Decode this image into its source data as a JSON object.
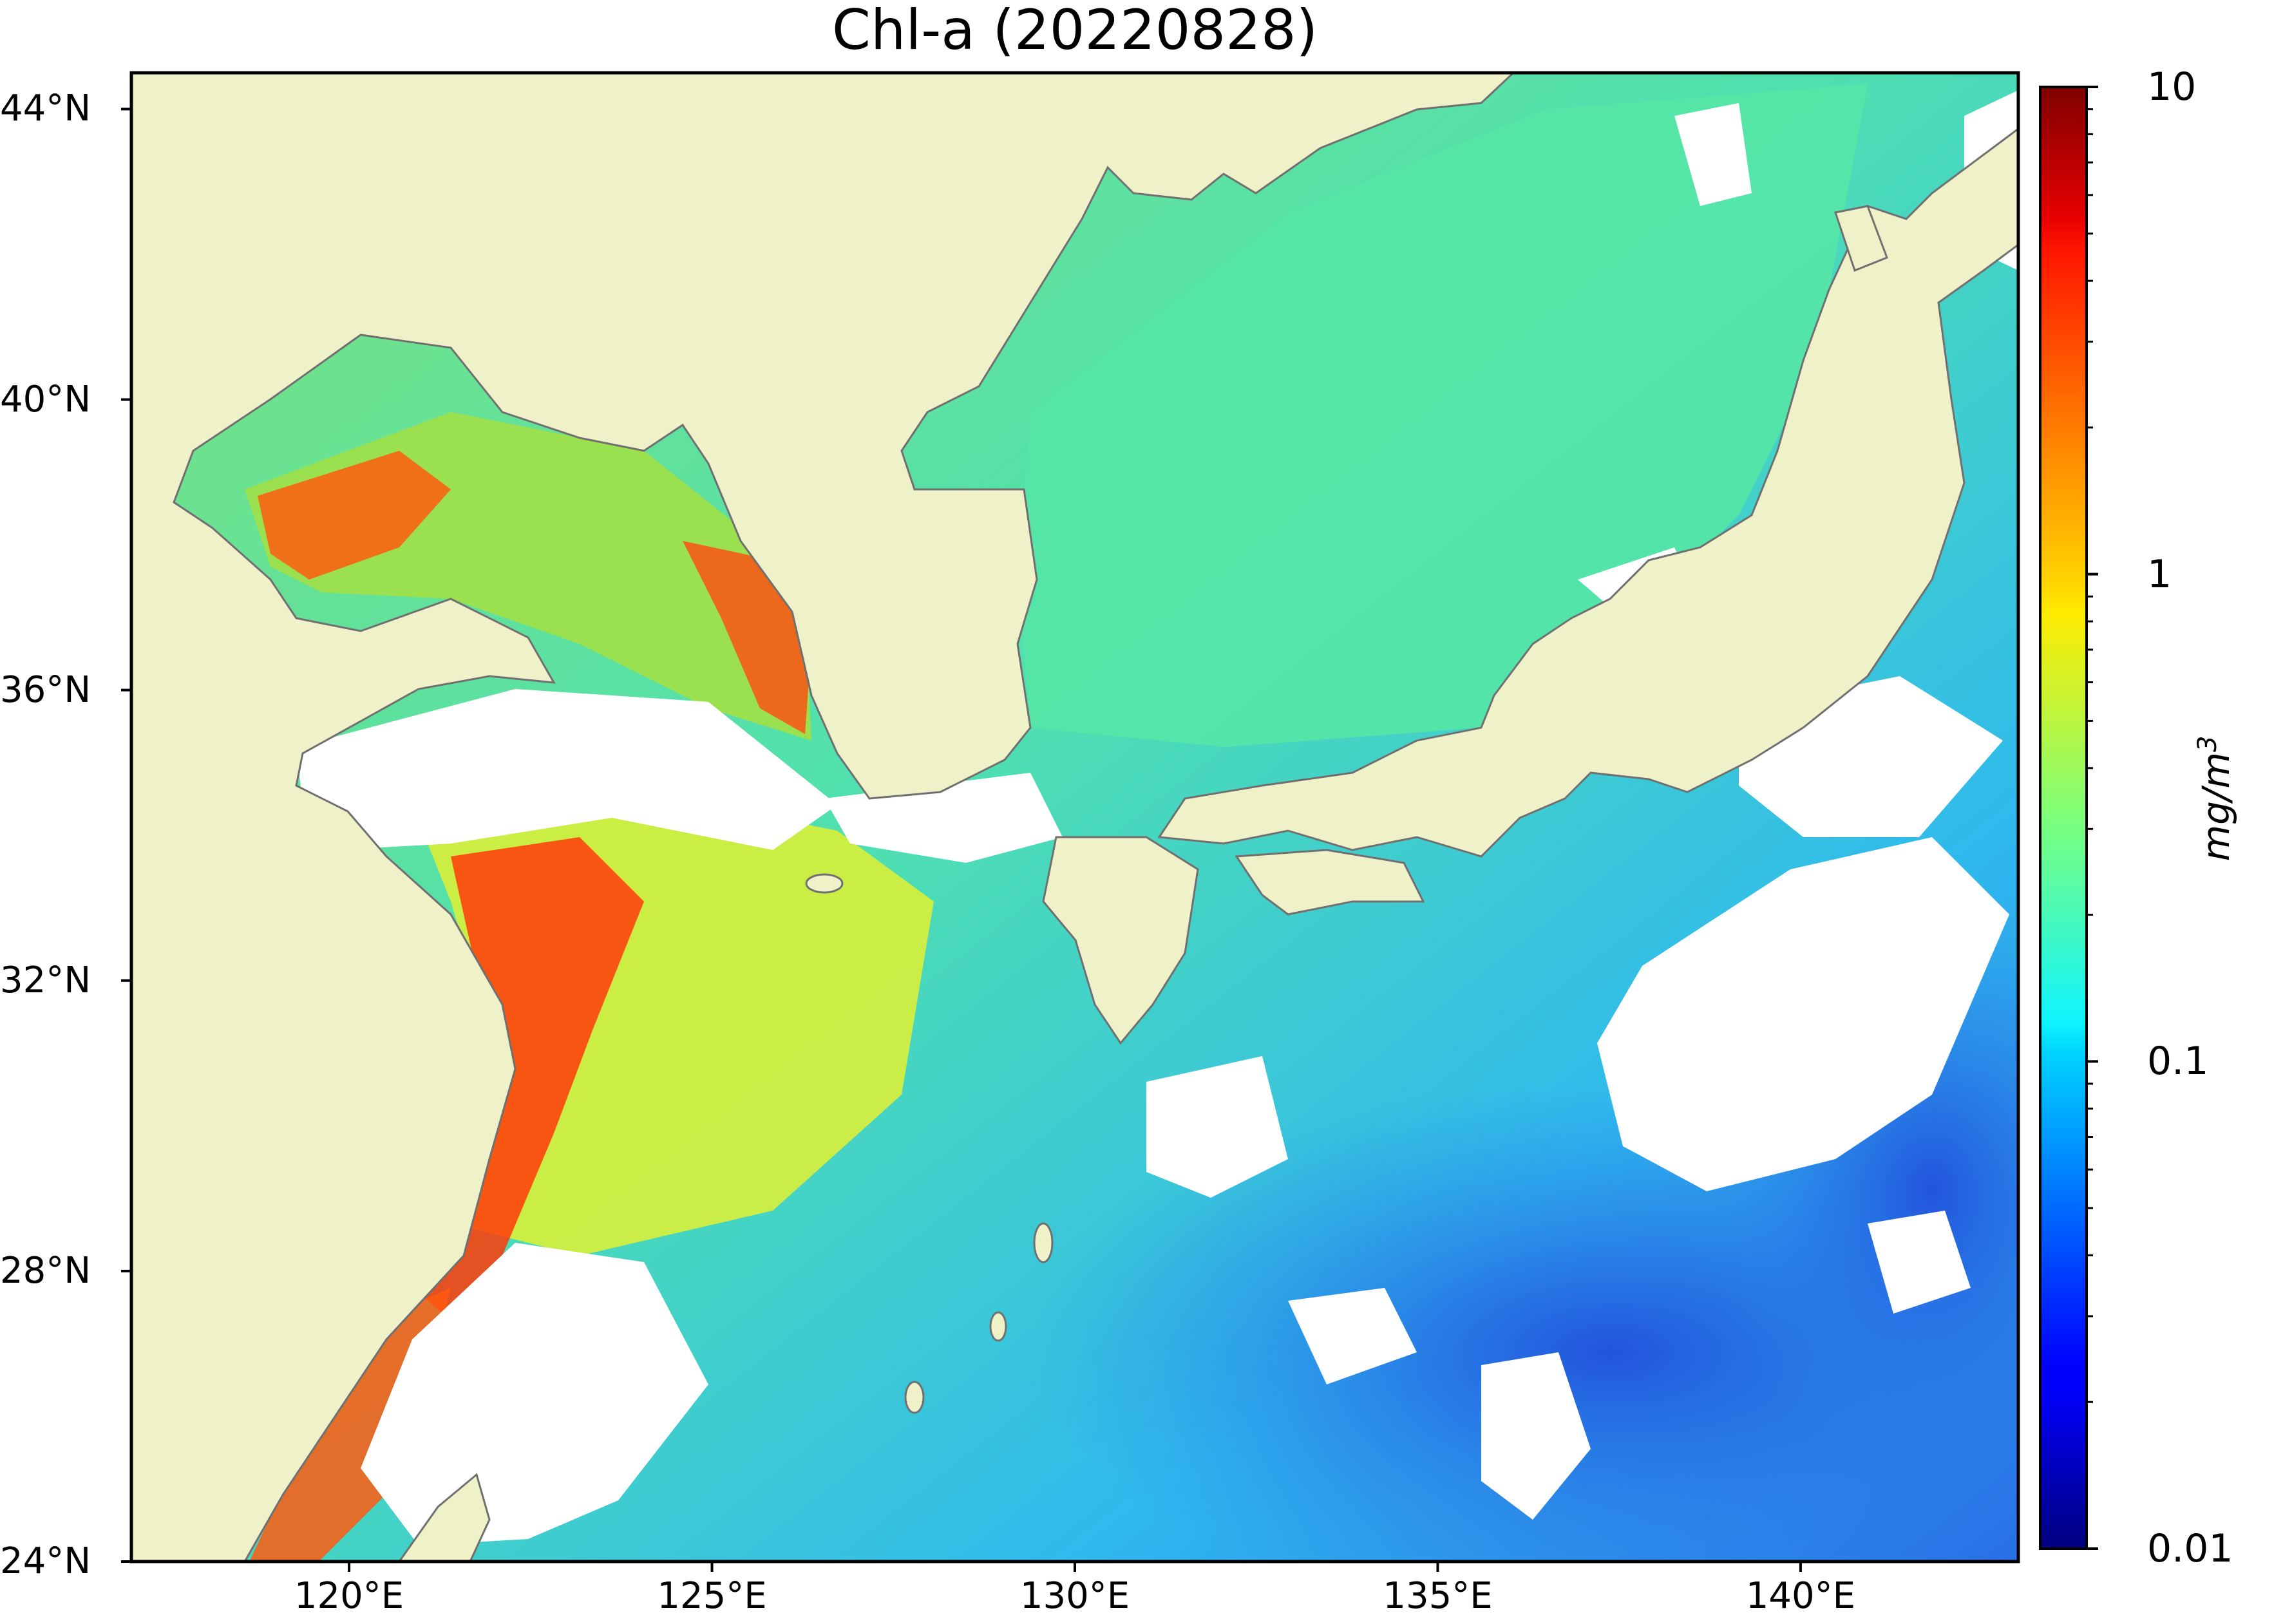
{
  "title": "Chl-a (20220828)",
  "map": {
    "lon_range": [
      117,
      143
    ],
    "lat_range": [
      24,
      44.5
    ],
    "land_color": "#eff2c8",
    "no_data_color": "#ffffff",
    "coastline_color": "#707070",
    "lat_ticks": [
      {
        "value": 44,
        "label": "44°N"
      },
      {
        "value": 40,
        "label": "40°N"
      },
      {
        "value": 36,
        "label": "36°N"
      },
      {
        "value": 32,
        "label": "32°N"
      },
      {
        "value": 28,
        "label": "28°N"
      },
      {
        "value": 24,
        "label": "24°N"
      }
    ],
    "lon_ticks": [
      {
        "value": 120,
        "label": "120°E"
      },
      {
        "value": 125,
        "label": "125°E"
      },
      {
        "value": 130,
        "label": "130°E"
      },
      {
        "value": 135,
        "label": "135°E"
      },
      {
        "value": 140,
        "label": "140°E"
      }
    ]
  },
  "colorbar": {
    "scale": "log",
    "range": [
      0.01,
      10
    ],
    "colormap": "jet",
    "ticks": [
      {
        "value": 10,
        "label": "10"
      },
      {
        "value": 1,
        "label": "1"
      },
      {
        "value": 0.1,
        "label": "0.1"
      },
      {
        "value": 0.01,
        "label": "0.01"
      }
    ],
    "unit_base": "mg/m",
    "unit_exp": "3"
  }
}
